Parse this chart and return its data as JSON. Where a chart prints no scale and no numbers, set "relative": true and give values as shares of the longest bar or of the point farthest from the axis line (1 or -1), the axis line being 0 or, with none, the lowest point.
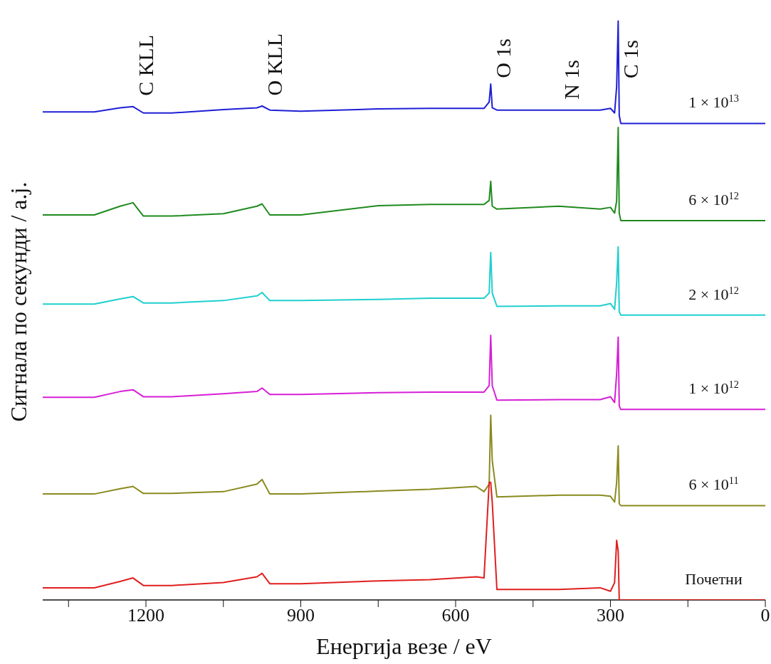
{
  "chart_data": {
    "type": "line",
    "relative": true,
    "xlabel": "Енергија везе / eV",
    "ylabel": "Сигнала по секунди / a.j.",
    "xlim": [
      1400,
      0
    ],
    "xticks": [
      {
        "value": 1350,
        "label": null
      },
      1200,
      {
        "value": 1050,
        "label": null
      },
      900,
      {
        "value": 750,
        "label": null
      },
      600,
      {
        "value": 450,
        "label": null
      },
      300,
      {
        "value": 150,
        "label": null
      },
      0
    ],
    "tick_labels": "x",
    "marker": "none",
    "line_style": "solid",
    "x": [
      1400,
      1300,
      1250,
      1225,
      1205,
      1150,
      1050,
      985,
      975,
      960,
      900,
      750,
      650,
      560,
      545,
      535,
      532,
      529,
      520,
      400,
      320,
      300,
      292,
      288,
      285,
      283,
      280,
      100,
      0
    ],
    "annotations": [
      {
        "text": "C KLL",
        "x": 1225,
        "y": 0.852
      },
      {
        "text": "O KLL",
        "x": 975,
        "y": 0.853
      },
      {
        "text": "O 1s",
        "x": 532,
        "y": 0.891
      },
      {
        "text": "N 1s",
        "x": 400,
        "y": 0.846
      },
      {
        "text": "C 1s",
        "x": 285,
        "y": 1
      }
    ],
    "series": [
      {
        "name": "1 × 10$^{13}$",
        "color": "#1f1fd6",
        "values": [
          0.843,
          0.843,
          0.85,
          0.852,
          0.841,
          0.841,
          0.847,
          0.85,
          0.853,
          0.846,
          0.844,
          0.848,
          0.849,
          0.849,
          0.849,
          0.86,
          0.891,
          0.85,
          0.846,
          0.846,
          0.846,
          0.849,
          0.841,
          0.887,
          1,
          0.837,
          0.823,
          0.823,
          0.823
        ]
      },
      {
        "name": "6 × 10$^{12}$",
        "color": "#1f8a1f",
        "values": [
          0.665,
          0.665,
          0.68,
          0.686,
          0.663,
          0.663,
          0.667,
          0.68,
          0.684,
          0.665,
          0.665,
          0.681,
          0.683,
          0.683,
          0.683,
          0.69,
          0.723,
          0.68,
          0.675,
          0.68,
          0.675,
          0.678,
          0.668,
          0.689,
          0.816,
          0.668,
          0.655,
          0.655,
          0.655
        ]
      },
      {
        "name": "2 × 10$^{12}$",
        "color": "#1fcfcf",
        "values": [
          0.511,
          0.511,
          0.52,
          0.524,
          0.513,
          0.513,
          0.517,
          0.525,
          0.531,
          0.517,
          0.517,
          0.519,
          0.521,
          0.521,
          0.521,
          0.53,
          0.6,
          0.53,
          0.507,
          0.508,
          0.508,
          0.512,
          0.502,
          0.548,
          0.61,
          0.498,
          0.492,
          0.492,
          0.492
        ]
      },
      {
        "name": "1 × 10$^{12}$",
        "color": "#d61fd6",
        "values": [
          0.35,
          0.35,
          0.36,
          0.363,
          0.351,
          0.351,
          0.356,
          0.36,
          0.366,
          0.355,
          0.355,
          0.358,
          0.359,
          0.359,
          0.359,
          0.37,
          0.457,
          0.37,
          0.345,
          0.346,
          0.346,
          0.351,
          0.341,
          0.391,
          0.454,
          0.335,
          0.329,
          0.329,
          0.329
        ]
      },
      {
        "name": "6 × 10$^{11}$",
        "color": "#8a8a1f",
        "values": [
          0.183,
          0.183,
          0.192,
          0.196,
          0.184,
          0.184,
          0.187,
          0.2,
          0.208,
          0.183,
          0.183,
          0.188,
          0.191,
          0.196,
          0.187,
          0.2,
          0.319,
          0.24,
          0.178,
          0.181,
          0.181,
          0.179,
          0.169,
          0.203,
          0.266,
          0.166,
          0.163,
          0.163,
          0.163
        ]
      },
      {
        "name": "Почетни",
        "color": "#e01f1f",
        "values": [
          0.021,
          0.021,
          0.032,
          0.038,
          0.025,
          0.025,
          0.03,
          0.04,
          0.046,
          0.028,
          0.028,
          0.033,
          0.035,
          0.04,
          0.038,
          0.203,
          0.203,
          0.168,
          0.018,
          0.018,
          0.021,
          0.015,
          0.03,
          0.103,
          0.084,
          0,
          0,
          0,
          0
        ]
      }
    ]
  }
}
